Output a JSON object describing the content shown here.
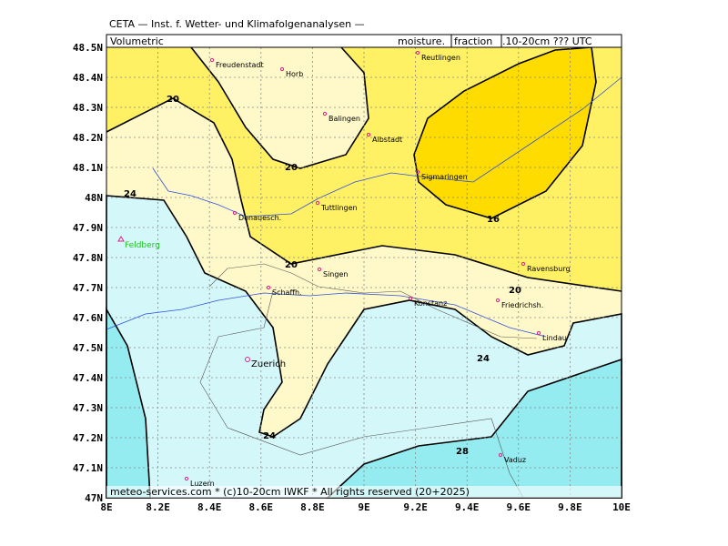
{
  "header": {
    "title": "CETA — Inst. f. Wetter- und Klimafolgenanalysen —",
    "left": "Volumetric",
    "right_prefix": "moisture.",
    "right_box": "fraction",
    "right_suffix": ".10-20cm ??? UTC"
  },
  "footer": "meteo-services.com * (c)10-20cm IWKF * All rights reserved (20+2025)",
  "x_axis": {
    "ticks": [
      "8E",
      "8.2E",
      "8.4E",
      "8.6E",
      "8.8E",
      "9E",
      "9.2E",
      "9.4E",
      "9.6E",
      "9.8E",
      "10E"
    ]
  },
  "y_axis": {
    "ticks": [
      "48.5N",
      "48.4N",
      "48.3N",
      "48.2N",
      "48.1N",
      "48N",
      "47.9N",
      "47.8N",
      "47.7N",
      "47.6N",
      "47.5N",
      "47.4N",
      "47.3N",
      "47.2N",
      "47.1N",
      "47N"
    ]
  },
  "places": [
    "Freudenstadt",
    "Horb",
    "Reutlingen",
    "Balingen",
    "Albstadt",
    "Sigmaringen",
    "Tuttlingen",
    "Donauesch.",
    "Feldberg",
    "Ravensburg",
    "Singen",
    "Schaffh.",
    "Konstanz",
    "Friedrichsh.",
    "Lindau",
    "Zuerich",
    "Vaduz",
    "Luzern"
  ],
  "contour_labels": [
    "20",
    "20",
    "16",
    "20",
    "20",
    "24",
    "24",
    "24",
    "28"
  ]
}
